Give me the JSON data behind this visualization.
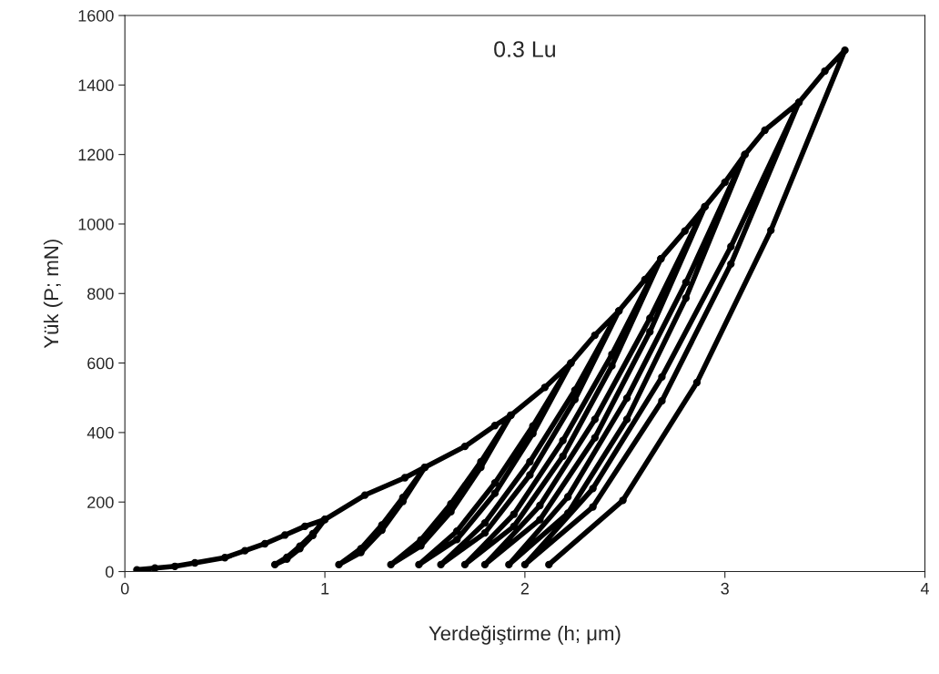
{
  "chart_data": {
    "type": "line",
    "xlabel": "Yerdeğiştirme (h; μm)",
    "ylabel": "Yük (P; mN)",
    "annotations": [
      "0.3 Lu"
    ],
    "xlim": [
      0,
      4
    ],
    "xticks": [
      0,
      1,
      2,
      3,
      4
    ],
    "ylim": [
      0,
      1600
    ],
    "yticks": [
      0,
      200,
      400,
      600,
      800,
      1000,
      1200,
      1400,
      1600
    ],
    "grid": false,
    "marker": "circle",
    "line_style": "solid",
    "series": [
      {
        "color": "#000000",
        "x": [
          0.06,
          0.15,
          0.25,
          0.35,
          0.5,
          0.6,
          0.7,
          0.8,
          0.9,
          1.0,
          0.94,
          0.875,
          0.81,
          0.75,
          0.81,
          0.875,
          0.94,
          1.0,
          1.2,
          1.4,
          1.5,
          1.39,
          1.285,
          1.18,
          1.07,
          1.18,
          1.285,
          1.39,
          1.5,
          1.7,
          1.85,
          1.93,
          1.78,
          1.63,
          1.48,
          1.33,
          1.48,
          1.63,
          1.78,
          1.93,
          2.1,
          2.23,
          2.04,
          1.85,
          1.66,
          1.47,
          1.66,
          1.85,
          2.04,
          2.23,
          2.35,
          2.47,
          2.25,
          2.025,
          1.8,
          1.58,
          1.8,
          2.025,
          2.25,
          2.47,
          2.6,
          2.68,
          2.435,
          2.19,
          1.945,
          1.7,
          1.945,
          2.19,
          2.435,
          2.68,
          2.8,
          2.9,
          2.625,
          2.35,
          2.075,
          1.8,
          2.075,
          2.35,
          2.625,
          2.9,
          3.0,
          3.1,
          2.805,
          2.51,
          2.215,
          1.92,
          2.215,
          2.51,
          2.805,
          3.1,
          3.2,
          3.37,
          3.03,
          2.685,
          2.34,
          2.0,
          2.34,
          2.685,
          3.03,
          3.37,
          3.5,
          3.6,
          3.23,
          2.86,
          2.49,
          2.12
        ],
        "values": [
          5,
          10,
          15,
          25,
          40,
          60,
          80,
          105,
          130,
          150,
          104,
          66,
          36,
          20,
          41,
          73,
          109,
          150,
          220,
          270,
          300,
          202,
          119,
          55,
          20,
          66,
          134,
          213,
          300,
          360,
          420,
          450,
          300,
          172,
          74,
          20,
          91,
          195,
          316,
          450,
          530,
          600,
          397,
          225,
          92,
          20,
          116,
          255,
          419,
          600,
          680,
          750,
          495,
          278,
          111,
          20,
          140,
          316,
          522,
          750,
          840,
          900,
          592,
          332,
          130,
          20,
          165,
          377,
          625,
          900,
          980,
          1050,
          690,
          385,
          149,
          20,
          190,
          438,
          729,
          1050,
          1120,
          1200,
          787,
          438,
          168,
          20,
          215,
          499,
          832,
          1200,
          1270,
          1350,
          885,
          491,
          186,
          20,
          239,
          560,
          935,
          1350,
          1440,
          1500,
          982,
          544,
          205,
          20
        ]
      }
    ]
  }
}
